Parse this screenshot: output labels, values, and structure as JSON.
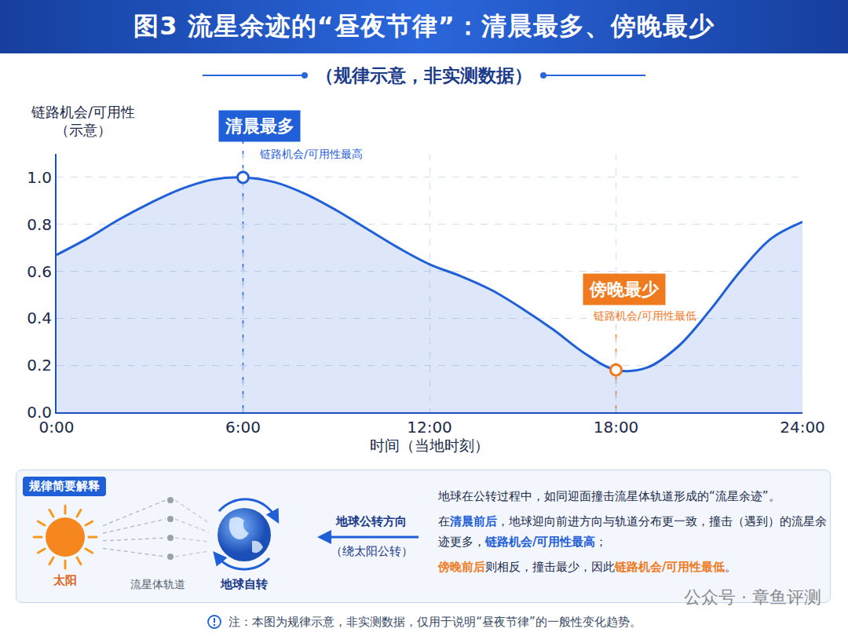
{
  "chart_data": {
    "type": "line",
    "title": "图3  流星余迹的“昼夜节律”：清晨最多、傍晚最少",
    "subtitle": "（规律示意，非实测数据）",
    "ylabel": "链路机会/可用性",
    "ylabel_note": "（示意）",
    "xlabel": "时间（当地时刻）",
    "x": [
      0,
      1,
      2,
      3,
      4,
      5,
      6,
      7,
      8,
      9,
      10,
      11,
      12,
      13,
      14,
      15,
      16,
      17,
      18,
      19,
      20,
      21,
      22,
      23,
      24
    ],
    "values": [
      0.67,
      0.74,
      0.82,
      0.89,
      0.95,
      0.99,
      1.0,
      0.98,
      0.93,
      0.86,
      0.78,
      0.7,
      0.63,
      0.58,
      0.52,
      0.44,
      0.35,
      0.25,
      0.18,
      0.19,
      0.28,
      0.43,
      0.6,
      0.74,
      0.81
    ],
    "color": "#1f5fd8",
    "xlim": [
      0,
      24
    ],
    "xticks": [
      {
        "value": 0,
        "label": "0:00"
      },
      {
        "value": 6,
        "label": "6:00"
      },
      {
        "value": 12,
        "label": "12:00"
      },
      {
        "value": 18,
        "label": "18:00"
      },
      {
        "value": 24,
        "label": "24:00"
      }
    ],
    "ylim": [
      0,
      1.1
    ],
    "yticks": [
      {
        "value": 0,
        "label": "0.0"
      },
      0.2,
      0.4,
      0.6,
      0.8,
      {
        "value": 1.0,
        "label": "1.0"
      }
    ],
    "grid": true,
    "annotations": [
      {
        "x": 6,
        "y": 1.0,
        "text": "清晨最多",
        "subtext": "链路机会/可用性最高",
        "color": "#1f5fd8"
      },
      {
        "x": 18,
        "y": 0.18,
        "text": "傍晚最少",
        "subtext": "链路机会/可用性最低",
        "color": "#f07a1e"
      }
    ],
    "explanation": {
      "heading": "规律简要解释",
      "sun": "太阳",
      "orbit": "流星体轨道",
      "earth": "地球自转",
      "arrow_label": "地球公转方向",
      "arrow_note": "（绕太阳公转）",
      "paragraphs": [
        [
          {
            "text": "地球在公转过程中，如同迎面撞击流星体轨道形成的“流星余迹”。"
          }
        ],
        [
          {
            "text": "在"
          },
          {
            "text": "清晨前后",
            "color": "#1f5fd8"
          },
          {
            "text": "，地球迎向前进方向与轨道分布更一致，撞击（遇到）的流星余迹更多，"
          },
          {
            "text": "链路机会/可用性最高",
            "color": "#1f5fd8"
          },
          {
            "text": "；"
          }
        ],
        [
          {
            "text": "傍晚前后",
            "color": "#f07a1e"
          },
          {
            "text": "则相反，撞击最少，因此"
          },
          {
            "text": "链路机会/可用性最低",
            "color": "#f07a1e"
          },
          {
            "text": "。"
          }
        ]
      ]
    },
    "note": "注：本图为规律示意，非实测数据，仅用于说明“昼夜节律”的一般性变化趋势。",
    "watermark": "公众号 · 章鱼评测"
  }
}
